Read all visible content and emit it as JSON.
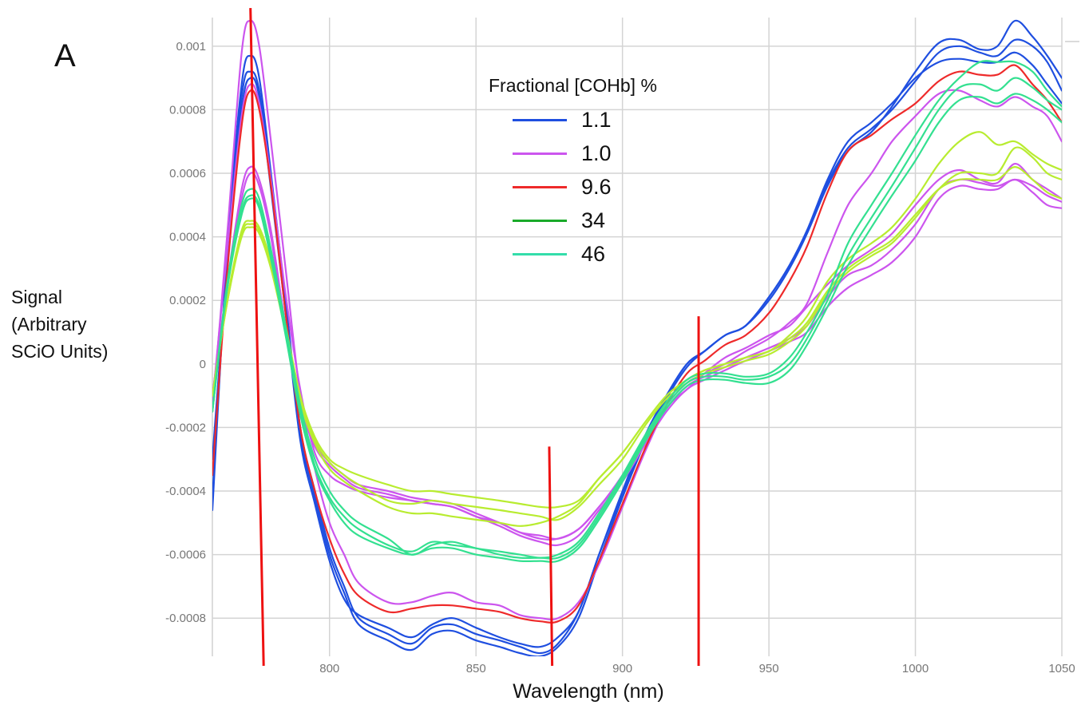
{
  "panel_label": "A",
  "chart_data": {
    "type": "line",
    "title": "",
    "xlabel": "Wavelength (nm)",
    "ylabel": [
      "Signal",
      "(Arbitrary",
      "SCiO Units)"
    ],
    "xlim": [
      760,
      1050
    ],
    "ylim": [
      -0.00092,
      0.00109
    ],
    "x_ticks": [
      800,
      850,
      900,
      950,
      1000,
      1050
    ],
    "y_ticks": [
      0.001,
      0.0008,
      0.0006,
      0.0004,
      0.0002,
      0,
      -0.0002,
      -0.0004,
      -0.0006,
      -0.0008
    ],
    "y_tick_labels": [
      "0.001",
      "0.0008",
      "0.0006",
      "0.0004",
      "0.0002",
      "0",
      "-0.0002",
      "-0.0004",
      "-0.0006",
      "-0.0008"
    ],
    "grid": true,
    "legend_title": "Fractional [COHb] %",
    "legend_position": "top-center",
    "legend": [
      {
        "label": "1.1",
        "color": "#1f4fe0"
      },
      {
        "label": "1.0",
        "color": "#cc55ee"
      },
      {
        "label": "9.6",
        "color": "#ee2a2a"
      },
      {
        "label": "34",
        "color": "#1aaa2a"
      },
      {
        "label": "46",
        "color": "#33ddaa"
      }
    ],
    "x": [
      760,
      765,
      770,
      773,
      776,
      780,
      785,
      790,
      795,
      800,
      805,
      810,
      820,
      828,
      835,
      842,
      850,
      858,
      865,
      872,
      878,
      885,
      892,
      900,
      908,
      915,
      922,
      928,
      935,
      942,
      950,
      957,
      963,
      970,
      977,
      985,
      992,
      1000,
      1008,
      1015,
      1022,
      1028,
      1034,
      1040,
      1045,
      1050
    ],
    "series": [
      {
        "color": "#1f4fe0",
        "values": [
          -0.00046,
          0.00035,
          0.00088,
          0.00097,
          0.0009,
          0.0006,
          0.0002,
          -0.0002,
          -0.0004,
          -0.00058,
          -0.0007,
          -0.0008,
          -0.00085,
          -0.00088,
          -0.00083,
          -0.00082,
          -0.00085,
          -0.00087,
          -0.00089,
          -0.00091,
          -0.00088,
          -0.00078,
          -0.0006,
          -0.0004,
          -0.00022,
          -0.0001,
          0.0,
          4e-05,
          9e-05,
          0.00012,
          0.00021,
          0.00031,
          0.00042,
          0.00057,
          0.00068,
          0.00074,
          0.0008,
          0.00089,
          0.00098,
          0.001,
          0.00098,
          0.00097,
          0.00102,
          0.001,
          0.00095,
          0.00086
        ]
      },
      {
        "color": "#1f4fe0",
        "values": [
          -0.00042,
          0.00033,
          0.00084,
          0.00092,
          0.00086,
          0.00058,
          0.00018,
          -0.00022,
          -0.00042,
          -0.0006,
          -0.00072,
          -0.00082,
          -0.00087,
          -0.0009,
          -0.00085,
          -0.00084,
          -0.00087,
          -0.00089,
          -0.00091,
          -0.00092,
          -0.00089,
          -0.0008,
          -0.00062,
          -0.00042,
          -0.00024,
          -0.00011,
          -1e-05,
          4e-05,
          9e-05,
          0.00012,
          0.0002,
          0.0003,
          0.00041,
          0.00056,
          0.00067,
          0.00073,
          0.00081,
          0.00092,
          0.00101,
          0.00102,
          0.00099,
          0.001,
          0.00108,
          0.00103,
          0.00097,
          0.0009
        ]
      },
      {
        "color": "#1f4fe0",
        "values": [
          -0.0003,
          0.0003,
          0.0008,
          0.0009,
          0.00084,
          0.00055,
          0.00016,
          -0.00024,
          -0.00044,
          -0.00062,
          -0.00074,
          -0.00079,
          -0.00083,
          -0.00086,
          -0.00082,
          -0.0008,
          -0.00083,
          -0.00086,
          -0.00088,
          -0.00089,
          -0.00086,
          -0.00078,
          -0.0006,
          -0.00041,
          -0.00023,
          -0.0001,
          0.0,
          4e-05,
          9e-05,
          0.00012,
          0.00021,
          0.00031,
          0.00042,
          0.00058,
          0.0007,
          0.00076,
          0.00082,
          0.0009,
          0.00095,
          0.00096,
          0.00095,
          0.00095,
          0.00098,
          0.00094,
          0.00088,
          0.00082
        ]
      },
      {
        "color": "#cc55ee",
        "values": [
          -0.00015,
          0.0004,
          0.00098,
          0.00108,
          0.001,
          0.0007,
          0.0003,
          -0.0001,
          -0.00033,
          -0.0005,
          -0.0006,
          -0.00069,
          -0.00075,
          -0.00075,
          -0.00073,
          -0.00072,
          -0.00075,
          -0.00076,
          -0.00079,
          -0.0008,
          -0.0008,
          -0.00075,
          -0.00063,
          -0.00045,
          -0.00027,
          -0.00014,
          -8e-05,
          -3e-05,
          2e-05,
          5e-05,
          9e-05,
          0.00012,
          0.00018,
          0.00025,
          0.00031,
          0.00036,
          0.00041,
          0.0005,
          0.00058,
          0.00061,
          0.00058,
          0.00057,
          0.00063,
          0.00058,
          0.00055,
          0.00052
        ]
      },
      {
        "color": "#cc55ee",
        "values": [
          -0.0001,
          0.00025,
          0.00055,
          0.00062,
          0.00058,
          0.00042,
          0.00012,
          -0.00012,
          -0.00025,
          -0.00031,
          -0.00035,
          -0.00038,
          -0.0004,
          -0.00042,
          -0.00043,
          -0.00044,
          -0.00047,
          -0.0005,
          -0.00053,
          -0.00055,
          -0.00055,
          -0.00052,
          -0.00045,
          -0.00036,
          -0.00024,
          -0.00014,
          -7e-05,
          -4e-05,
          -1e-05,
          2e-05,
          5e-05,
          8e-05,
          0.00012,
          0.00021,
          0.00028,
          0.00031,
          0.00036,
          0.00044,
          0.00055,
          0.00058,
          0.00057,
          0.00056,
          0.00058,
          0.00056,
          0.00053,
          0.00051
        ]
      },
      {
        "color": "#cc55ee",
        "values": [
          -0.0001,
          0.00024,
          0.00052,
          0.0006,
          0.00056,
          0.0004,
          0.0001,
          -0.00013,
          -0.00026,
          -0.00032,
          -0.00036,
          -0.00039,
          -0.00041,
          -0.00043,
          -0.00044,
          -0.00045,
          -0.00048,
          -0.00051,
          -0.00054,
          -0.00056,
          -0.00057,
          -0.00054,
          -0.00046,
          -0.00037,
          -0.00025,
          -0.00015,
          -8e-05,
          -5e-05,
          -2e-05,
          1e-05,
          4e-05,
          7e-05,
          0.0001,
          0.00018,
          0.00024,
          0.00028,
          0.00032,
          0.0004,
          0.00052,
          0.00056,
          0.00055,
          0.00055,
          0.00058,
          0.00054,
          0.0005,
          0.00049
        ]
      },
      {
        "color": "#cc55ee",
        "values": [
          -0.00012,
          0.00035,
          0.00078,
          0.00088,
          0.00082,
          0.00058,
          0.00022,
          -8e-05,
          -0.00028,
          -0.00035,
          -0.00038,
          -0.0004,
          -0.00042,
          -0.00043,
          -0.00044,
          -0.00045,
          -0.00048,
          -0.0005,
          -0.00053,
          -0.00054,
          -0.00055,
          -0.00052,
          -0.00045,
          -0.00035,
          -0.00023,
          -0.00013,
          -6e-05,
          -3e-05,
          0.0,
          4e-05,
          8e-05,
          0.00013,
          0.00019,
          0.00035,
          0.0005,
          0.0006,
          0.0007,
          0.00078,
          0.00085,
          0.00086,
          0.00083,
          0.00081,
          0.00084,
          0.00081,
          0.00078,
          0.0007
        ]
      },
      {
        "color": "#ee2a2a",
        "values": [
          -0.00035,
          0.00028,
          0.00075,
          0.00086,
          0.0008,
          0.00056,
          0.00016,
          -0.0002,
          -0.0004,
          -0.00055,
          -0.00066,
          -0.00073,
          -0.00078,
          -0.00077,
          -0.00076,
          -0.00076,
          -0.00077,
          -0.00078,
          -0.0008,
          -0.00081,
          -0.00081,
          -0.00076,
          -0.00062,
          -0.00044,
          -0.00026,
          -0.00013,
          -3e-05,
          1e-05,
          6e-05,
          9e-05,
          0.00016,
          0.00026,
          0.00037,
          0.00054,
          0.00067,
          0.00072,
          0.00077,
          0.00082,
          0.00089,
          0.00092,
          0.00091,
          0.00091,
          0.00094,
          0.00088,
          0.00083,
          0.00076
        ]
      },
      {
        "color": "#b8ec30",
        "values": [
          -0.0001,
          0.0002,
          0.00042,
          0.00045,
          0.00043,
          0.00032,
          0.00012,
          -0.0001,
          -0.00023,
          -0.0003,
          -0.00033,
          -0.00035,
          -0.00038,
          -0.0004,
          -0.0004,
          -0.00041,
          -0.00042,
          -0.00043,
          -0.00044,
          -0.00045,
          -0.00045,
          -0.00043,
          -0.00036,
          -0.00028,
          -0.00018,
          -0.0001,
          -5e-05,
          -2e-05,
          0.0,
          2e-05,
          4e-05,
          9e-05,
          0.00015,
          0.00026,
          0.00033,
          0.00038,
          0.00043,
          0.00052,
          0.00063,
          0.0007,
          0.00073,
          0.00069,
          0.0007,
          0.00066,
          0.00063,
          0.00061
        ]
      },
      {
        "color": "#b8ec30",
        "values": [
          -0.0001,
          0.00019,
          0.00041,
          0.00044,
          0.00042,
          0.00031,
          0.00011,
          -0.00011,
          -0.00024,
          -0.00031,
          -0.00035,
          -0.00038,
          -0.00043,
          -0.00044,
          -0.00043,
          -0.00044,
          -0.00045,
          -0.00046,
          -0.00047,
          -0.00048,
          -0.00049,
          -0.00045,
          -0.00038,
          -0.0003,
          -0.00019,
          -0.00011,
          -6e-05,
          -3e-05,
          -1e-05,
          1e-05,
          3e-05,
          7e-05,
          0.00012,
          0.00022,
          0.00029,
          0.00034,
          0.00038,
          0.00046,
          0.00055,
          0.0006,
          0.0006,
          0.0006,
          0.00068,
          0.00065,
          0.0006,
          0.00058
        ]
      },
      {
        "color": "#b8ec30",
        "values": [
          -0.0001,
          0.00019,
          0.0004,
          0.00043,
          0.00041,
          0.0003,
          0.0001,
          -0.00012,
          -0.00025,
          -0.00033,
          -0.00037,
          -0.0004,
          -0.00045,
          -0.00047,
          -0.00047,
          -0.00048,
          -0.00049,
          -0.0005,
          -0.00051,
          -0.0005,
          -0.00048,
          -0.00044,
          -0.00036,
          -0.00028,
          -0.00018,
          -0.0001,
          -5e-05,
          -2e-05,
          0.0,
          2e-05,
          4e-05,
          8e-05,
          0.00013,
          0.00023,
          0.0003,
          0.00035,
          0.00039,
          0.00047,
          0.00055,
          0.00058,
          0.00058,
          0.00058,
          0.00062,
          0.00058,
          0.00054,
          0.00052
        ]
      },
      {
        "color": "#33e090",
        "values": [
          -0.00015,
          0.00025,
          0.0005,
          0.00055,
          0.00052,
          0.00036,
          0.00012,
          -0.00013,
          -0.0003,
          -0.0004,
          -0.00046,
          -0.0005,
          -0.00055,
          -0.0006,
          -0.00057,
          -0.00056,
          -0.00058,
          -0.00059,
          -0.0006,
          -0.00061,
          -0.0006,
          -0.00056,
          -0.00047,
          -0.00035,
          -0.00022,
          -0.00012,
          -5e-05,
          -3e-05,
          -3e-05,
          -4e-05,
          -3e-05,
          2e-05,
          0.0001,
          0.00022,
          0.00038,
          0.0005,
          0.0006,
          0.00072,
          0.00083,
          0.0009,
          0.00095,
          0.00095,
          0.00095,
          0.00092,
          0.00086,
          0.00081
        ]
      },
      {
        "color": "#33e090",
        "values": [
          -0.00015,
          0.00024,
          0.00048,
          0.00053,
          0.0005,
          0.00034,
          0.0001,
          -0.00015,
          -0.00032,
          -0.00042,
          -0.00048,
          -0.00052,
          -0.00057,
          -0.00059,
          -0.00056,
          -0.00057,
          -0.00058,
          -0.0006,
          -0.00061,
          -0.00061,
          -0.00061,
          -0.00057,
          -0.00048,
          -0.00036,
          -0.00023,
          -0.00013,
          -6e-05,
          -4e-05,
          -4e-05,
          -5e-05,
          -4e-05,
          0.0,
          8e-05,
          0.0002,
          0.00034,
          0.00046,
          0.00056,
          0.00068,
          0.0008,
          0.00087,
          0.00088,
          0.00086,
          0.0009,
          0.00087,
          0.00083,
          0.0008
        ]
      },
      {
        "color": "#33e090",
        "values": [
          -0.00015,
          0.00023,
          0.00047,
          0.00052,
          0.00049,
          0.00033,
          9e-05,
          -0.00016,
          -0.00033,
          -0.00043,
          -0.0005,
          -0.00054,
          -0.00058,
          -0.0006,
          -0.00058,
          -0.00058,
          -0.0006,
          -0.00061,
          -0.00062,
          -0.00062,
          -0.00062,
          -0.00058,
          -0.00049,
          -0.00037,
          -0.00024,
          -0.00014,
          -7e-05,
          -5e-05,
          -5e-05,
          -6e-05,
          -6e-05,
          -2e-05,
          6e-05,
          0.00018,
          0.00031,
          0.00043,
          0.00053,
          0.00064,
          0.00076,
          0.00083,
          0.00084,
          0.00082,
          0.00085,
          0.00083,
          0.0008,
          0.00076
        ]
      }
    ],
    "annotation_lines": [
      {
        "x1": 773,
        "y1": 0.00112,
        "x2": 777.5,
        "y2": -0.00095,
        "color": "#ee1111"
      },
      {
        "x1": 875,
        "y1": -0.00026,
        "x2": 876,
        "y2": -0.00095,
        "color": "#ee1111"
      },
      {
        "x1": 926,
        "y1": 0.00015,
        "x2": 926,
        "y2": -0.00095,
        "color": "#ee1111"
      }
    ]
  }
}
